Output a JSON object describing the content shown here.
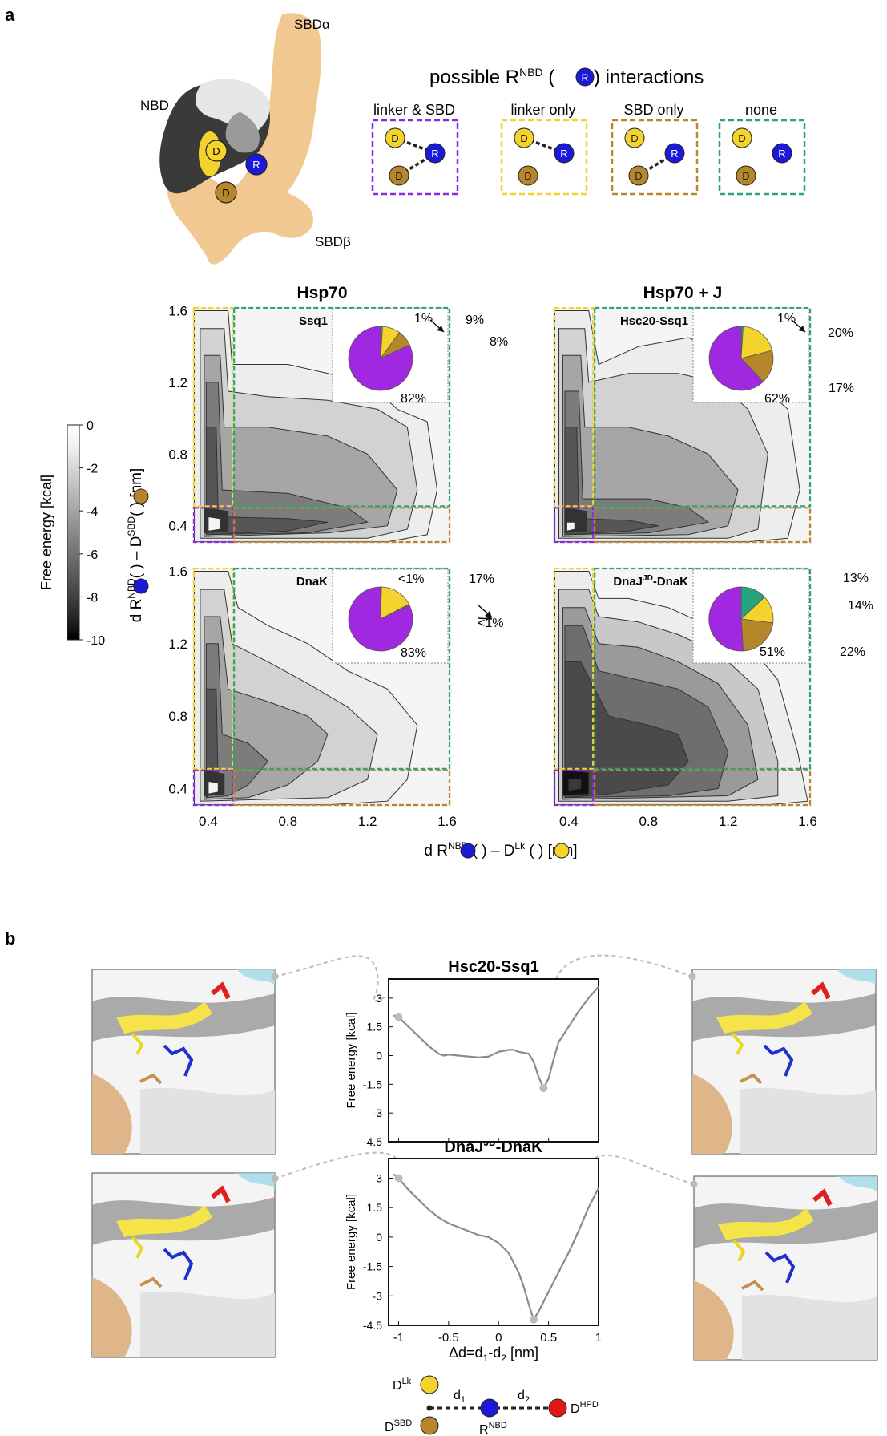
{
  "panel_a": {
    "letter": "a",
    "structure_labels": {
      "sbd_alpha": "SBDα",
      "nbd": "NBD",
      "sbd_beta": "SBDβ",
      "residue_d": "D",
      "residue_r": "R"
    },
    "interactions_title_pre": "possible R",
    "interactions_title_sup": "NBD",
    "interactions_title_mid": " (",
    "interactions_title_r": "R",
    "interactions_title_post": ") interactions",
    "schemes": [
      {
        "label": "linker & SBD",
        "color": "#8a2be2",
        "links": [
          "linker",
          "sbd"
        ]
      },
      {
        "label": "linker only",
        "color": "#f2d230",
        "links": [
          "linker"
        ]
      },
      {
        "label": "SBD only",
        "color": "#b8862b",
        "links": [
          "sbd"
        ]
      },
      {
        "label": "none",
        "color": "#2ba37a",
        "links": []
      }
    ],
    "colorbar": {
      "label": "Free energy [kcal]",
      "ticks": [
        "0",
        "-2",
        "-4",
        "-6",
        "-8",
        "-10"
      ],
      "min": -10,
      "max": 0
    },
    "column_titles": [
      "Hsp70",
      "Hsp70 + J"
    ],
    "y_label_pre": "d R",
    "y_label_sup1": "NBD",
    "y_label_mid": " – D",
    "y_label_sup2": "SBD",
    "y_label_post": " [nm]",
    "x_label_pre": "d R",
    "x_label_sup1": "NBD",
    "x_label_mid": " – D",
    "x_label_sup2": "Lk",
    "x_label_post": " [nm]",
    "x_ticks": [
      "0.4",
      "0.8",
      "1.2",
      "1.6"
    ],
    "y_ticks": [
      "0.4",
      "0.8",
      "1.2",
      "1.6"
    ],
    "region_colors": {
      "linker_sbd": "#8a2be2",
      "linker": "#f2d230",
      "sbd": "#b8862b",
      "none": "#2ba37a"
    }
  },
  "chart_data": [
    {
      "type": "pie",
      "title": "Ssq1",
      "slices": [
        {
          "name": "linker & SBD",
          "value": 82,
          "label": "82%",
          "color": "#a028e0"
        },
        {
          "name": "SBD only",
          "value": 8,
          "label": "8%",
          "color": "#b5862a"
        },
        {
          "name": "linker only",
          "value": 9,
          "label": "9%",
          "color": "#f4d42c"
        },
        {
          "name": "none",
          "value": 1,
          "label": "1%",
          "color": "#25a57c"
        }
      ]
    },
    {
      "type": "pie",
      "title": "Hsc20-Ssq1",
      "slices": [
        {
          "name": "linker & SBD",
          "value": 62,
          "label": "62%",
          "color": "#a028e0"
        },
        {
          "name": "SBD only",
          "value": 17,
          "label": "17%",
          "color": "#b5862a"
        },
        {
          "name": "linker only",
          "value": 20,
          "label": "20%",
          "color": "#f4d42c"
        },
        {
          "name": "none",
          "value": 1,
          "label": "1%",
          "color": "#25a57c"
        }
      ]
    },
    {
      "type": "pie",
      "title": "DnaK",
      "slices": [
        {
          "name": "linker & SBD",
          "value": 83,
          "label": "83%",
          "color": "#a028e0"
        },
        {
          "name": "SBD only",
          "value": 0.5,
          "label": "<1%",
          "color": "#b5862a"
        },
        {
          "name": "linker only",
          "value": 17,
          "label": "17%",
          "color": "#f4d42c"
        },
        {
          "name": "none",
          "value": 0.5,
          "label": "<1%",
          "color": "#25a57c"
        }
      ]
    },
    {
      "type": "pie",
      "title": "DnaJ^JD-DnaK",
      "slices": [
        {
          "name": "linker & SBD",
          "value": 51,
          "label": "51%",
          "color": "#a028e0"
        },
        {
          "name": "SBD only",
          "value": 22,
          "label": "22%",
          "color": "#b5862a"
        },
        {
          "name": "linker only",
          "value": 14,
          "label": "14%",
          "color": "#f4d42c"
        },
        {
          "name": "none",
          "value": 13,
          "label": "13%",
          "color": "#25a57c"
        }
      ]
    },
    {
      "type": "line",
      "title": "Hsc20-Ssq1",
      "xlabel": "Δd=d1-d2  [nm]",
      "ylabel": "Free energy [kcal]",
      "xlim": [
        -1.1,
        1
      ],
      "ylim": [
        -4.5,
        4
      ],
      "x": [
        -1.05,
        -1.0,
        -0.9,
        -0.8,
        -0.7,
        -0.6,
        -0.55,
        -0.5,
        -0.4,
        -0.3,
        -0.2,
        -0.1,
        0.0,
        0.1,
        0.15,
        0.2,
        0.25,
        0.3,
        0.35,
        0.4,
        0.45,
        0.5,
        0.55,
        0.6,
        0.7,
        0.8,
        0.9,
        1.0
      ],
      "y": [
        2.1,
        2.0,
        1.5,
        1.0,
        0.5,
        0.1,
        0.0,
        0.05,
        0.0,
        -0.05,
        -0.1,
        -0.05,
        0.2,
        0.3,
        0.3,
        0.2,
        0.15,
        0.1,
        -0.3,
        -1.1,
        -1.7,
        -1.2,
        -0.2,
        0.7,
        1.5,
        2.3,
        3.0,
        3.6
      ]
    },
    {
      "type": "line",
      "title": "DnaJ^JD-DnaK",
      "xlabel": "Δd=d1-d2  [nm]",
      "ylabel": "Free energy [kcal]",
      "xlim": [
        -1.1,
        1
      ],
      "ylim": [
        -4.5,
        4
      ],
      "x": [
        -1.05,
        -1.0,
        -0.9,
        -0.8,
        -0.7,
        -0.6,
        -0.5,
        -0.4,
        -0.3,
        -0.2,
        -0.1,
        0.0,
        0.1,
        0.2,
        0.25,
        0.3,
        0.35,
        0.4,
        0.5,
        0.6,
        0.7,
        0.8,
        0.9,
        1.0
      ],
      "y": [
        3.2,
        3.0,
        2.4,
        1.9,
        1.4,
        1.0,
        0.7,
        0.5,
        0.3,
        0.1,
        0.0,
        -0.3,
        -0.8,
        -1.8,
        -2.5,
        -3.4,
        -4.2,
        -3.8,
        -2.8,
        -1.8,
        -0.8,
        0.3,
        1.5,
        2.5
      ]
    }
  ],
  "panel_b": {
    "letter": "b",
    "titles": [
      "Hsc20-Ssq1",
      "DnaJ",
      "JD",
      "-DnaK"
    ],
    "ylabel": "Free energy [kcal]",
    "y_ticks": [
      "3",
      "1.5",
      "0",
      "-1.5",
      "-3",
      "-4.5"
    ],
    "x_ticks": [
      "-1",
      "-0.5",
      "0",
      "0.5",
      "1"
    ],
    "x_label_pre": "Δd=d",
    "x_label_sub1": "1",
    "x_label_mid": "-d",
    "x_label_sub2": "2",
    "x_label_post": "  [nm]",
    "legend": {
      "dlk_pre": "D",
      "dlk_sup": "Lk",
      "d1_pre": "d",
      "d1_sub": "1",
      "d2_pre": "d",
      "d2_sub": "2",
      "dhpd_pre": "D",
      "dhpd_sup": "HPD",
      "dsbd_pre": "D",
      "dsbd_sup": "SBD",
      "rnbd_pre": "R",
      "rnbd_sup": "NBD"
    }
  }
}
